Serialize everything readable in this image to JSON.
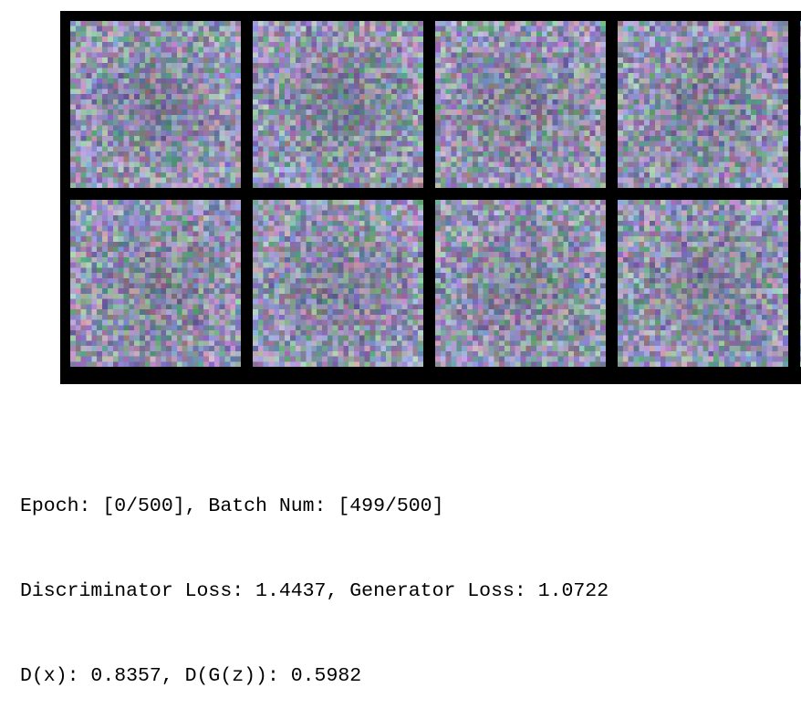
{
  "sample_grid": {
    "rows": 2,
    "columns_visible": 4,
    "columns_total": 5,
    "tile_pixels": 32,
    "background": "#000000"
  },
  "training_log": {
    "line1": "Epoch: [0/500], Batch Num: [499/500]",
    "line2": "Discriminator Loss: 1.4437, Generator Loss: 1.0722",
    "line3": "D(x): 0.8357, D(G(z)): 0.5982"
  }
}
